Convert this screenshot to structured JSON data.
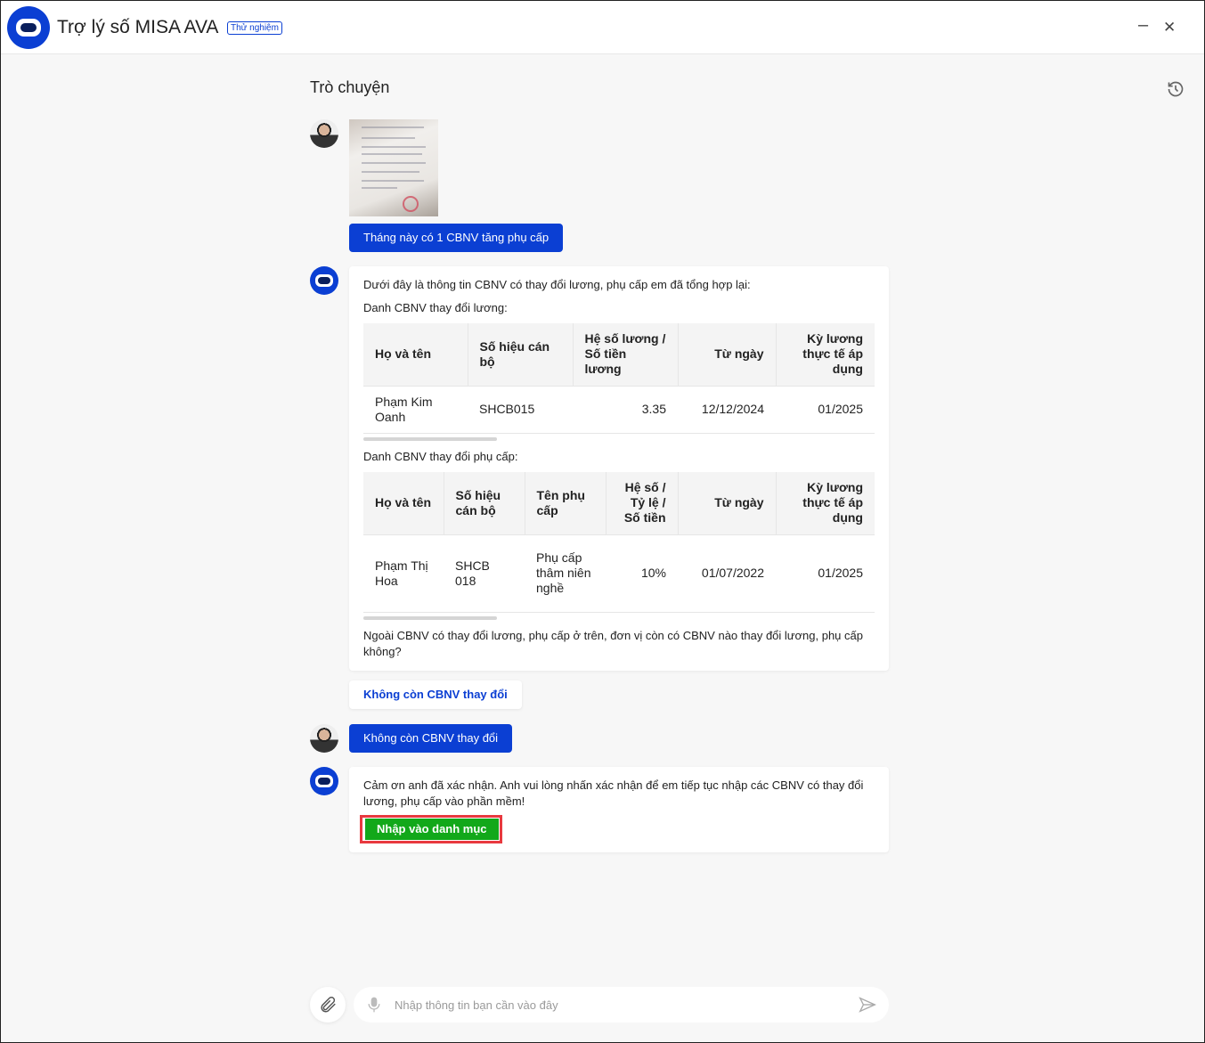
{
  "header": {
    "title": "Trợ lý số MISA AVA",
    "badge": "Thử nghiệm",
    "minimize": "–",
    "close": "✕"
  },
  "chat": {
    "title": "Trò chuyện",
    "messages": {
      "user1": "Tháng này có 1 CBNV tăng phụ cấp",
      "bot1": {
        "intro": "Dưới đây là thông tin CBNV có thay đổi lương, phụ cấp em đã tổng hợp lại:",
        "salary_label": "Danh CBNV thay đổi lương:",
        "salary_table": {
          "headers": [
            "Họ và tên",
            "Số hiệu cán bộ",
            "Hệ số lương / Số tiền lương",
            "Từ ngày",
            "Kỳ lương thực tế áp dụng"
          ],
          "rows": [
            [
              "Phạm Kim Oanh",
              "SHCB015",
              "3.35",
              "12/12/2024",
              "01/2025"
            ]
          ]
        },
        "allowance_label": "Danh CBNV thay đổi phụ cấp:",
        "allowance_table": {
          "headers": [
            "Họ và tên",
            "Số hiệu cán bộ",
            "Tên phụ cấp",
            "Hệ số / Tỷ lệ / Số tiền",
            "Từ ngày",
            "Kỳ lương thực tế áp dụng"
          ],
          "rows": [
            [
              "Phạm Thị Hoa",
              "SHCB 018",
              "Phụ cấp thâm niên nghề",
              "10%",
              "01/07/2022",
              "01/2025"
            ]
          ]
        },
        "question": "Ngoài CBNV có thay đổi lương, phụ cấp ở trên, đơn vị còn có CBNV nào thay đổi lương, phụ cấp không?"
      },
      "suggestion": "Không còn CBNV thay đổi",
      "user2": "Không còn CBNV thay đổi",
      "bot2": {
        "text": "Cảm ơn anh đã xác nhận. Anh vui lòng nhấn xác nhận để em tiếp tục nhập các CBNV có thay đổi lương, phụ cấp vào phần mềm!",
        "button": "Nhập vào danh mục"
      }
    }
  },
  "composer": {
    "placeholder": "Nhập thông tin bạn cần vào đây",
    "value": ""
  },
  "colors": {
    "brand": "#0b3fd3",
    "confirm": "#12a81a",
    "highlight": "#e8393f"
  }
}
